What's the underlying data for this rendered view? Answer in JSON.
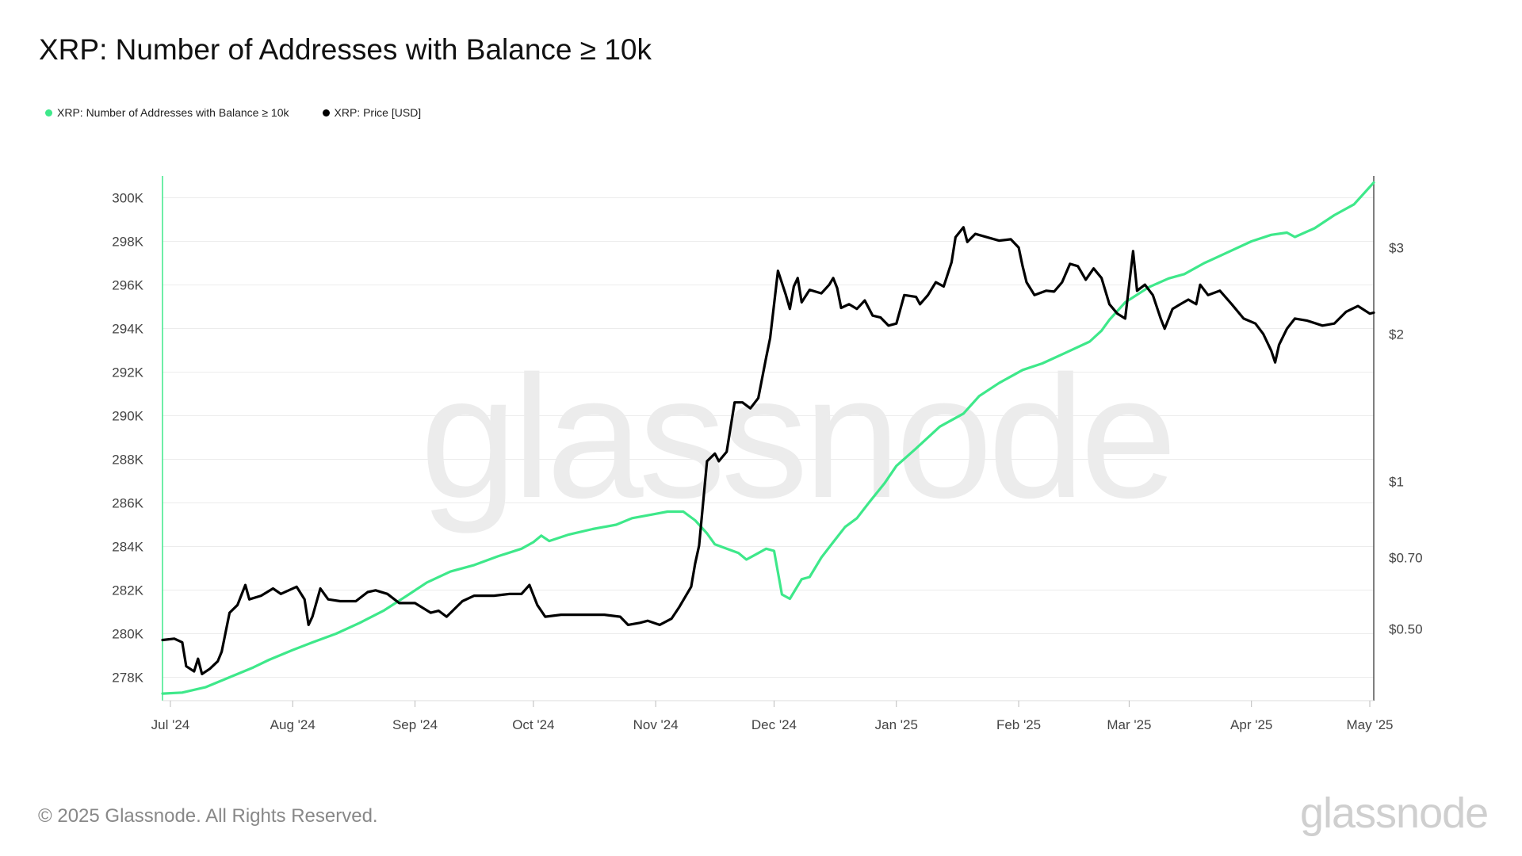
{
  "header": {
    "title": "XRP: Number of Addresses with Balance ≥ 10k"
  },
  "legend": [
    {
      "label": "XRP: Number of Addresses with Balance ≥ 10k",
      "color": "#3ee88a"
    },
    {
      "label": "XRP: Price [USD]",
      "color": "#000000"
    }
  ],
  "footer": {
    "copyright": "© 2025 Glassnode. All Rights Reserved.",
    "logo_text": "glassnode",
    "watermark_text": "glassnode"
  },
  "chart_data": {
    "type": "line",
    "title": "XRP: Number of Addresses with Balance ≥ 10k",
    "x_range": [
      "2024-06-29",
      "2025-05-02"
    ],
    "x_ticks": [
      {
        "date": "2024-07-01",
        "label": "Jul '24"
      },
      {
        "date": "2024-08-01",
        "label": "Aug '24"
      },
      {
        "date": "2024-09-01",
        "label": "Sep '24"
      },
      {
        "date": "2024-10-01",
        "label": "Oct '24"
      },
      {
        "date": "2024-11-01",
        "label": "Nov '24"
      },
      {
        "date": "2024-12-01",
        "label": "Dec '24"
      },
      {
        "date": "2025-01-01",
        "label": "Jan '25"
      },
      {
        "date": "2025-02-01",
        "label": "Feb '25"
      },
      {
        "date": "2025-03-01",
        "label": "Mar '25"
      },
      {
        "date": "2025-04-01",
        "label": "Apr '25"
      },
      {
        "date": "2025-05-01",
        "label": "May '25"
      }
    ],
    "y_left": {
      "scale": "linear",
      "range": [
        277000,
        301000
      ],
      "ticks": [
        {
          "value": 278000,
          "label": "278K"
        },
        {
          "value": 280000,
          "label": "280K"
        },
        {
          "value": 282000,
          "label": "282K"
        },
        {
          "value": 284000,
          "label": "284K"
        },
        {
          "value": 286000,
          "label": "286K"
        },
        {
          "value": 288000,
          "label": "288K"
        },
        {
          "value": 290000,
          "label": "290K"
        },
        {
          "value": 292000,
          "label": "292K"
        },
        {
          "value": 294000,
          "label": "294K"
        },
        {
          "value": 296000,
          "label": "296K"
        },
        {
          "value": 298000,
          "label": "298K"
        },
        {
          "value": 300000,
          "label": "300K"
        }
      ]
    },
    "y_right": {
      "scale": "log",
      "range": [
        0.36,
        4.2
      ],
      "ticks": [
        {
          "value": 0.5,
          "label": "$0.50"
        },
        {
          "value": 0.7,
          "label": "$0.70"
        },
        {
          "value": 1,
          "label": "$1"
        },
        {
          "value": 2,
          "label": "$2"
        },
        {
          "value": 3,
          "label": "$3"
        }
      ]
    },
    "grid": true,
    "legend_position": "top-left",
    "series": [
      {
        "name": "XRP: Number of Addresses with Balance ≥ 10k",
        "axis": "left",
        "color": "#3ee88a",
        "points": [
          [
            "2024-06-29",
            277250
          ],
          [
            "2024-07-04",
            277300
          ],
          [
            "2024-07-10",
            277550
          ],
          [
            "2024-07-16",
            278000
          ],
          [
            "2024-07-22",
            278450
          ],
          [
            "2024-07-26",
            278800
          ],
          [
            "2024-08-01",
            279250
          ],
          [
            "2024-08-06",
            279600
          ],
          [
            "2024-08-12",
            280000
          ],
          [
            "2024-08-18",
            280500
          ],
          [
            "2024-08-24",
            281050
          ],
          [
            "2024-08-30",
            281750
          ],
          [
            "2024-09-04",
            282350
          ],
          [
            "2024-09-10",
            282850
          ],
          [
            "2024-09-16",
            283150
          ],
          [
            "2024-09-22",
            283550
          ],
          [
            "2024-09-28",
            283900
          ],
          [
            "2024-10-01",
            284200
          ],
          [
            "2024-10-03",
            284500
          ],
          [
            "2024-10-05",
            284250
          ],
          [
            "2024-10-10",
            284550
          ],
          [
            "2024-10-16",
            284800
          ],
          [
            "2024-10-22",
            285000
          ],
          [
            "2024-10-26",
            285300
          ],
          [
            "2024-11-01",
            285500
          ],
          [
            "2024-11-04",
            285600
          ],
          [
            "2024-11-08",
            285600
          ],
          [
            "2024-11-11",
            285200
          ],
          [
            "2024-11-14",
            284600
          ],
          [
            "2024-11-16",
            284100
          ],
          [
            "2024-11-19",
            283900
          ],
          [
            "2024-11-22",
            283700
          ],
          [
            "2024-11-24",
            283400
          ],
          [
            "2024-11-27",
            283700
          ],
          [
            "2024-11-29",
            283900
          ],
          [
            "2024-12-01",
            283800
          ],
          [
            "2024-12-03",
            281800
          ],
          [
            "2024-12-05",
            281600
          ],
          [
            "2024-12-08",
            282500
          ],
          [
            "2024-12-10",
            282600
          ],
          [
            "2024-12-13",
            283500
          ],
          [
            "2024-12-16",
            284200
          ],
          [
            "2024-12-19",
            284900
          ],
          [
            "2024-12-22",
            285300
          ],
          [
            "2024-12-25",
            286000
          ],
          [
            "2024-12-29",
            286900
          ],
          [
            "2025-01-01",
            287700
          ],
          [
            "2025-01-06",
            288500
          ],
          [
            "2025-01-12",
            289500
          ],
          [
            "2025-01-18",
            290100
          ],
          [
            "2025-01-22",
            290900
          ],
          [
            "2025-01-27",
            291500
          ],
          [
            "2025-01-31",
            291900
          ],
          [
            "2025-02-02",
            292100
          ],
          [
            "2025-02-07",
            292400
          ],
          [
            "2025-02-13",
            292900
          ],
          [
            "2025-02-19",
            293400
          ],
          [
            "2025-02-22",
            293900
          ],
          [
            "2025-02-24",
            294400
          ],
          [
            "2025-02-28",
            295200
          ],
          [
            "2025-03-06",
            295900
          ],
          [
            "2025-03-11",
            296300
          ],
          [
            "2025-03-15",
            296500
          ],
          [
            "2025-03-20",
            297000
          ],
          [
            "2025-03-26",
            297500
          ],
          [
            "2025-04-01",
            298000
          ],
          [
            "2025-04-06",
            298300
          ],
          [
            "2025-04-10",
            298400
          ],
          [
            "2025-04-12",
            298200
          ],
          [
            "2025-04-17",
            298600
          ],
          [
            "2025-04-22",
            299200
          ],
          [
            "2025-04-27",
            299700
          ],
          [
            "2025-05-02",
            300700
          ]
        ]
      },
      {
        "name": "XRP: Price [USD]",
        "axis": "right",
        "color": "#000000",
        "points": [
          [
            "2024-06-29",
            0.475
          ],
          [
            "2024-07-02",
            0.478
          ],
          [
            "2024-07-04",
            0.47
          ],
          [
            "2024-07-05",
            0.42
          ],
          [
            "2024-07-07",
            0.41
          ],
          [
            "2024-07-08",
            0.435
          ],
          [
            "2024-07-09",
            0.405
          ],
          [
            "2024-07-11",
            0.415
          ],
          [
            "2024-07-13",
            0.43
          ],
          [
            "2024-07-14",
            0.45
          ],
          [
            "2024-07-16",
            0.54
          ],
          [
            "2024-07-18",
            0.56
          ],
          [
            "2024-07-20",
            0.615
          ],
          [
            "2024-07-21",
            0.575
          ],
          [
            "2024-07-24",
            0.585
          ],
          [
            "2024-07-27",
            0.605
          ],
          [
            "2024-07-29",
            0.59
          ],
          [
            "2024-08-02",
            0.61
          ],
          [
            "2024-08-04",
            0.575
          ],
          [
            "2024-08-05",
            0.51
          ],
          [
            "2024-08-06",
            0.53
          ],
          [
            "2024-08-08",
            0.605
          ],
          [
            "2024-08-10",
            0.575
          ],
          [
            "2024-08-13",
            0.57
          ],
          [
            "2024-08-17",
            0.57
          ],
          [
            "2024-08-20",
            0.595
          ],
          [
            "2024-08-22",
            0.6
          ],
          [
            "2024-08-25",
            0.59
          ],
          [
            "2024-08-28",
            0.565
          ],
          [
            "2024-09-01",
            0.565
          ],
          [
            "2024-09-05",
            0.54
          ],
          [
            "2024-09-07",
            0.545
          ],
          [
            "2024-09-09",
            0.53
          ],
          [
            "2024-09-13",
            0.57
          ],
          [
            "2024-09-16",
            0.585
          ],
          [
            "2024-09-21",
            0.585
          ],
          [
            "2024-09-25",
            0.59
          ],
          [
            "2024-09-28",
            0.59
          ],
          [
            "2024-09-30",
            0.615
          ],
          [
            "2024-10-02",
            0.56
          ],
          [
            "2024-10-04",
            0.53
          ],
          [
            "2024-10-08",
            0.535
          ],
          [
            "2024-10-12",
            0.535
          ],
          [
            "2024-10-15",
            0.535
          ],
          [
            "2024-10-19",
            0.535
          ],
          [
            "2024-10-23",
            0.53
          ],
          [
            "2024-10-25",
            0.51
          ],
          [
            "2024-10-28",
            0.515
          ],
          [
            "2024-10-30",
            0.52
          ],
          [
            "2024-11-02",
            0.51
          ],
          [
            "2024-11-05",
            0.525
          ],
          [
            "2024-11-07",
            0.555
          ],
          [
            "2024-11-10",
            0.61
          ],
          [
            "2024-11-11",
            0.68
          ],
          [
            "2024-11-12",
            0.74
          ],
          [
            "2024-11-14",
            1.1
          ],
          [
            "2024-11-16",
            1.14
          ],
          [
            "2024-11-17",
            1.1
          ],
          [
            "2024-11-19",
            1.15
          ],
          [
            "2024-11-21",
            1.45
          ],
          [
            "2024-11-23",
            1.45
          ],
          [
            "2024-11-25",
            1.41
          ],
          [
            "2024-11-27",
            1.48
          ],
          [
            "2024-11-29",
            1.79
          ],
          [
            "2024-11-30",
            1.96
          ],
          [
            "2024-12-01",
            2.3
          ],
          [
            "2024-12-02",
            2.69
          ],
          [
            "2024-12-04",
            2.4
          ],
          [
            "2024-12-05",
            2.25
          ],
          [
            "2024-12-06",
            2.5
          ],
          [
            "2024-12-07",
            2.6
          ],
          [
            "2024-12-08",
            2.32
          ],
          [
            "2024-12-10",
            2.46
          ],
          [
            "2024-12-13",
            2.42
          ],
          [
            "2024-12-15",
            2.52
          ],
          [
            "2024-12-16",
            2.6
          ],
          [
            "2024-12-17",
            2.48
          ],
          [
            "2024-12-18",
            2.26
          ],
          [
            "2024-12-20",
            2.3
          ],
          [
            "2024-12-22",
            2.25
          ],
          [
            "2024-12-24",
            2.34
          ],
          [
            "2024-12-26",
            2.18
          ],
          [
            "2024-12-28",
            2.16
          ],
          [
            "2024-12-30",
            2.08
          ],
          [
            "2025-01-01",
            2.1
          ],
          [
            "2025-01-03",
            2.4
          ],
          [
            "2025-01-06",
            2.38
          ],
          [
            "2025-01-07",
            2.3
          ],
          [
            "2025-01-09",
            2.4
          ],
          [
            "2025-01-11",
            2.55
          ],
          [
            "2025-01-13",
            2.5
          ],
          [
            "2025-01-15",
            2.8
          ],
          [
            "2025-01-16",
            3.15
          ],
          [
            "2025-01-18",
            3.3
          ],
          [
            "2025-01-19",
            3.08
          ],
          [
            "2025-01-21",
            3.2
          ],
          [
            "2025-01-24",
            3.15
          ],
          [
            "2025-01-27",
            3.1
          ],
          [
            "2025-01-30",
            3.12
          ],
          [
            "2025-02-01",
            3.0
          ],
          [
            "2025-02-02",
            2.75
          ],
          [
            "2025-02-03",
            2.55
          ],
          [
            "2025-02-05",
            2.4
          ],
          [
            "2025-02-08",
            2.45
          ],
          [
            "2025-02-10",
            2.44
          ],
          [
            "2025-02-12",
            2.55
          ],
          [
            "2025-02-14",
            2.78
          ],
          [
            "2025-02-16",
            2.75
          ],
          [
            "2025-02-18",
            2.58
          ],
          [
            "2025-02-20",
            2.72
          ],
          [
            "2025-02-22",
            2.6
          ],
          [
            "2025-02-24",
            2.3
          ],
          [
            "2025-02-26",
            2.2
          ],
          [
            "2025-02-28",
            2.15
          ],
          [
            "2025-03-02",
            2.95
          ],
          [
            "2025-03-03",
            2.45
          ],
          [
            "2025-03-05",
            2.52
          ],
          [
            "2025-03-07",
            2.4
          ],
          [
            "2025-03-09",
            2.15
          ],
          [
            "2025-03-10",
            2.05
          ],
          [
            "2025-03-12",
            2.25
          ],
          [
            "2025-03-14",
            2.3
          ],
          [
            "2025-03-16",
            2.35
          ],
          [
            "2025-03-18",
            2.3
          ],
          [
            "2025-03-19",
            2.52
          ],
          [
            "2025-03-21",
            2.4
          ],
          [
            "2025-03-24",
            2.45
          ],
          [
            "2025-03-27",
            2.3
          ],
          [
            "2025-03-30",
            2.15
          ],
          [
            "2025-04-02",
            2.1
          ],
          [
            "2025-04-04",
            2.0
          ],
          [
            "2025-04-06",
            1.85
          ],
          [
            "2025-04-07",
            1.75
          ],
          [
            "2025-04-08",
            1.9
          ],
          [
            "2025-04-10",
            2.05
          ],
          [
            "2025-04-12",
            2.15
          ],
          [
            "2025-04-15",
            2.13
          ],
          [
            "2025-04-19",
            2.08
          ],
          [
            "2025-04-22",
            2.1
          ],
          [
            "2025-04-25",
            2.22
          ],
          [
            "2025-04-28",
            2.28
          ],
          [
            "2025-05-01",
            2.2
          ],
          [
            "2025-05-02",
            2.21
          ]
        ]
      }
    ]
  }
}
